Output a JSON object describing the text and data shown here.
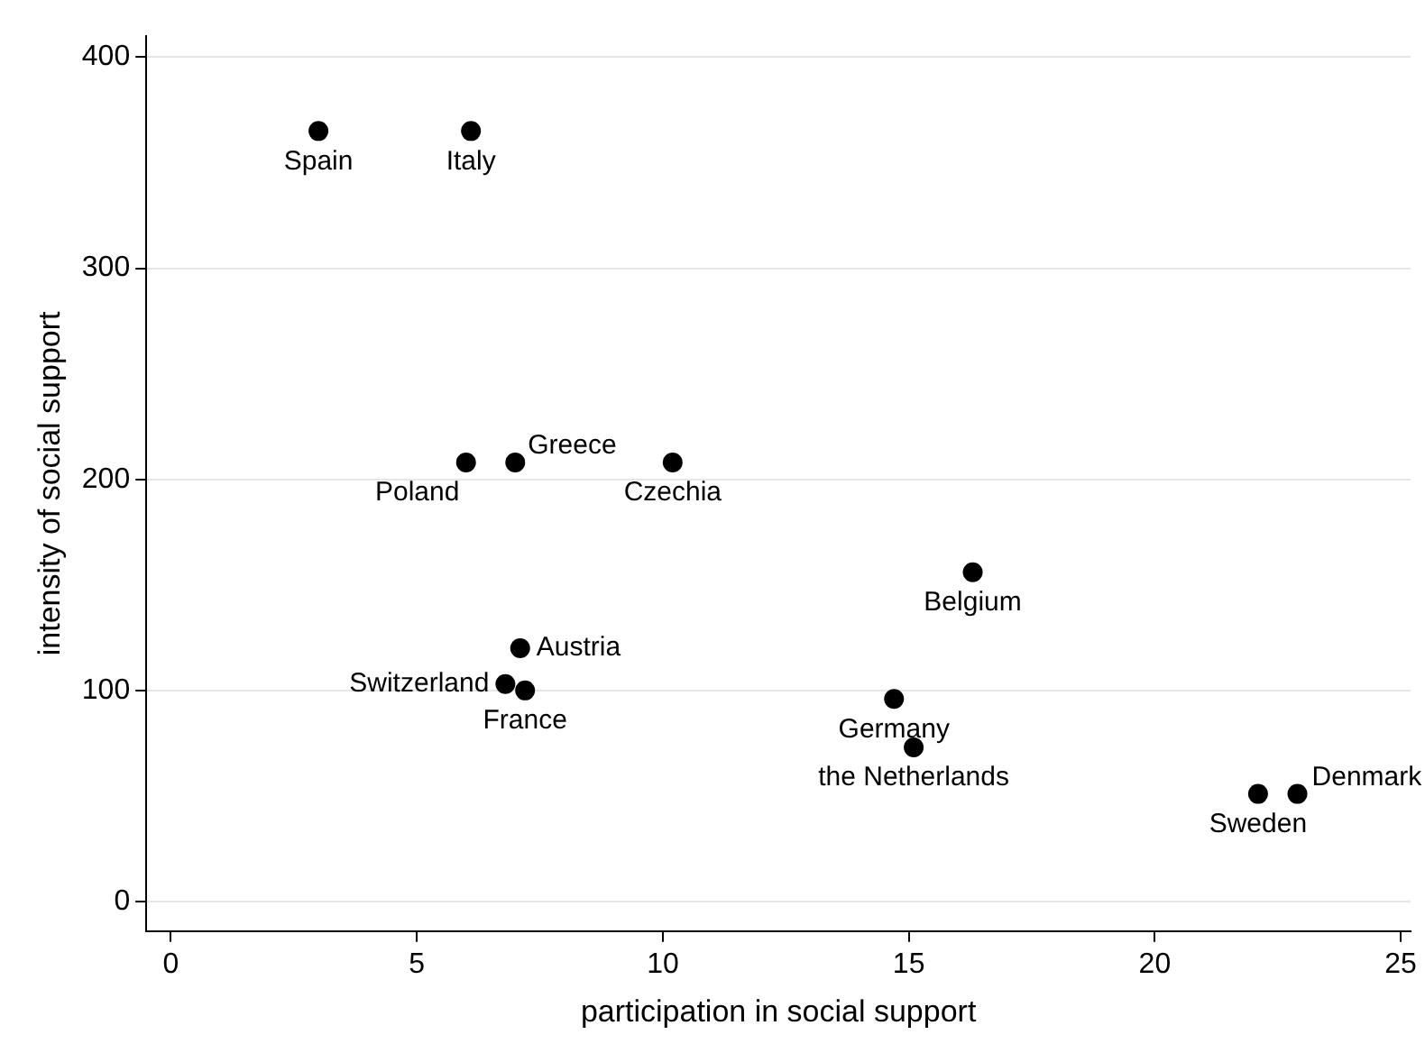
{
  "chart_data": {
    "type": "scatter",
    "xlabel": "participation in social support",
    "ylabel": "intensity of social support",
    "x": [
      3.0,
      6.1,
      6.0,
      7.0,
      10.2,
      16.3,
      7.1,
      6.8,
      7.2,
      14.7,
      15.1,
      22.1,
      22.9
    ],
    "series": [
      {
        "color": "#000000",
        "values": [
          365,
          365,
          208,
          208,
          208,
          156,
          120,
          103,
          100,
          96,
          73,
          51,
          51
        ]
      }
    ],
    "marker": "circle",
    "grid": "y",
    "xlim": [
      -0.5,
      25.2
    ],
    "ylim": [
      -14,
      410
    ],
    "xticks": [
      0,
      5,
      10,
      15,
      20,
      25
    ],
    "yticks": [
      0,
      100,
      200,
      300,
      400
    ],
    "annotations": [
      {
        "text": "Spain",
        "x": 3.0,
        "y": 365
      },
      {
        "text": "Italy",
        "x": 6.1,
        "y": 365
      },
      {
        "text": "Poland",
        "x": 6.0,
        "y": 208
      },
      {
        "text": "Greece",
        "x": 7.0,
        "y": 208
      },
      {
        "text": "Czechia",
        "x": 10.2,
        "y": 208
      },
      {
        "text": "Belgium",
        "x": 16.3,
        "y": 156
      },
      {
        "text": "Austria",
        "x": 7.1,
        "y": 120
      },
      {
        "text": "Switzerland",
        "x": 6.8,
        "y": 103
      },
      {
        "text": "France",
        "x": 7.2,
        "y": 100
      },
      {
        "text": "Germany",
        "x": 14.7,
        "y": 96
      },
      {
        "text": "the Netherlands",
        "x": 15.1,
        "y": 73
      },
      {
        "text": "Sweden",
        "x": 22.1,
        "y": 51
      },
      {
        "text": "Denmark",
        "x": 22.9,
        "y": 51
      }
    ]
  }
}
